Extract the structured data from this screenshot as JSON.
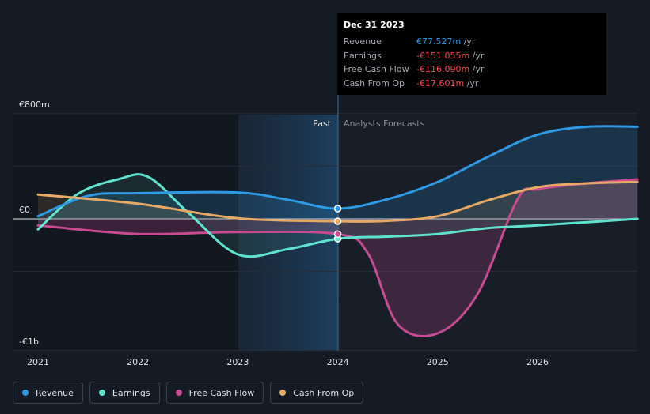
{
  "chart_data": {
    "type": "line",
    "title": "",
    "x": [
      2021,
      2022,
      2023,
      2024,
      2025,
      2026,
      2027
    ],
    "x_tick_labels": [
      "2021",
      "2022",
      "2023",
      "2024",
      "2025",
      "2026"
    ],
    "y_tick_labels": {
      "top": "€800m",
      "zero": "€0",
      "bottom": "-€1b"
    },
    "ylim": [
      -1000,
      800
    ],
    "divider": {
      "x": 2024,
      "past_label": "Past",
      "forecast_label": "Analysts Forecasts"
    },
    "series": [
      {
        "name": "Revenue",
        "color": "#2f9ae3",
        "points": [
          [
            2021,
            20
          ],
          [
            2021.5,
            175
          ],
          [
            2022,
            195
          ],
          [
            2023,
            200
          ],
          [
            2023.5,
            145
          ],
          [
            2024,
            78
          ],
          [
            2024.5,
            150
          ],
          [
            2025,
            280
          ],
          [
            2025.5,
            470
          ],
          [
            2026,
            640
          ],
          [
            2026.5,
            700
          ],
          [
            2027,
            700
          ]
        ]
      },
      {
        "name": "Earnings",
        "color": "#5fe3cf",
        "points": [
          [
            2021,
            -80
          ],
          [
            2021.4,
            190
          ],
          [
            2021.8,
            300
          ],
          [
            2022.1,
            320
          ],
          [
            2022.5,
            50
          ],
          [
            2023,
            -270
          ],
          [
            2023.5,
            -230
          ],
          [
            2024,
            -151
          ],
          [
            2024.5,
            -135
          ],
          [
            2025,
            -115
          ],
          [
            2025.5,
            -70
          ],
          [
            2026,
            -50
          ],
          [
            2027,
            0
          ]
        ]
      },
      {
        "name": "Free Cash Flow",
        "color": "#c64b91",
        "points": [
          [
            2021,
            -50
          ],
          [
            2022,
            -115
          ],
          [
            2023,
            -100
          ],
          [
            2024,
            -116
          ],
          [
            2024.3,
            -260
          ],
          [
            2024.6,
            -800
          ],
          [
            2025,
            -870
          ],
          [
            2025.4,
            -570
          ],
          [
            2025.8,
            150
          ],
          [
            2026,
            225
          ],
          [
            2026.5,
            270
          ],
          [
            2027,
            300
          ]
        ]
      },
      {
        "name": "Cash From Op",
        "color": "#e7a966",
        "points": [
          [
            2021,
            185
          ],
          [
            2022,
            115
          ],
          [
            2023,
            5
          ],
          [
            2024,
            -18
          ],
          [
            2024.5,
            -15
          ],
          [
            2025,
            20
          ],
          [
            2025.5,
            140
          ],
          [
            2026,
            240
          ],
          [
            2026.5,
            270
          ],
          [
            2027,
            280
          ]
        ]
      }
    ],
    "highlight_x": 2024
  },
  "tooltip": {
    "date": "Dec 31 2023",
    "rows": [
      {
        "label": "Revenue",
        "value": "€77.527m",
        "unit": "/yr",
        "color": "#2f9ae3"
      },
      {
        "label": "Earnings",
        "value": "-€151.055m",
        "unit": "/yr",
        "color": "#ee4c4c"
      },
      {
        "label": "Free Cash Flow",
        "value": "-€116.090m",
        "unit": "/yr",
        "color": "#ee4c4c"
      },
      {
        "label": "Cash From Op",
        "value": "-€17.601m",
        "unit": "/yr",
        "color": "#ee4c4c"
      }
    ]
  },
  "legend": [
    {
      "label": "Revenue",
      "color": "#2f9ae3"
    },
    {
      "label": "Earnings",
      "color": "#5fe3cf"
    },
    {
      "label": "Free Cash Flow",
      "color": "#c64b91"
    },
    {
      "label": "Cash From Op",
      "color": "#e7a966"
    }
  ]
}
